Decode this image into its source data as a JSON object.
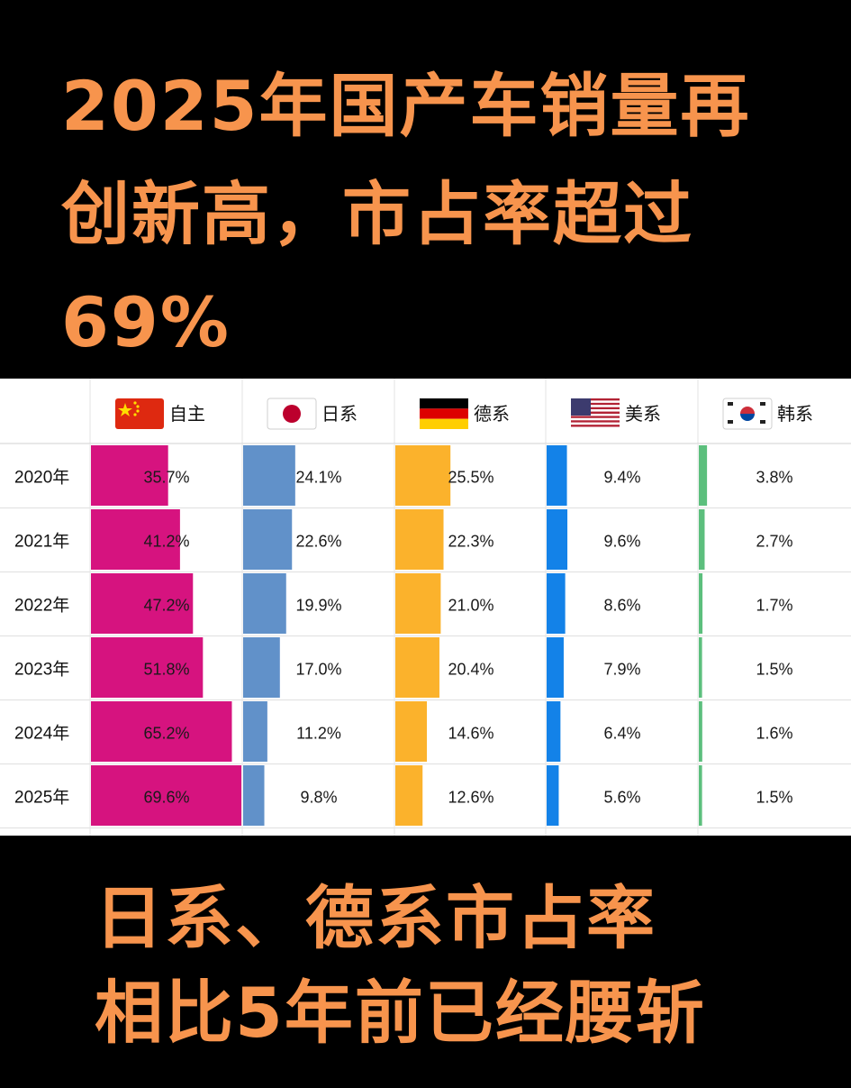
{
  "headline": "2025年国产车销量再\n创新高，市占率超过\n69%",
  "footer": "日系、德系市占率\n相比5年前已经腰斩",
  "chart_data": {
    "type": "bar",
    "layout": "table-of-horizontal-bars",
    "title": "",
    "categories": [
      "2020年",
      "2021年",
      "2022年",
      "2023年",
      "2024年",
      "2025年"
    ],
    "series": [
      {
        "name": "自主",
        "flag": "china-flag-icon",
        "color": "#d6137f",
        "values": [
          35.7,
          41.2,
          47.2,
          51.8,
          65.2,
          69.6
        ]
      },
      {
        "name": "日系",
        "flag": "japan-flag-icon",
        "color": "#6191c9",
        "values": [
          24.1,
          22.6,
          19.9,
          17.0,
          11.2,
          9.8
        ]
      },
      {
        "name": "德系",
        "flag": "germany-flag-icon",
        "color": "#fbb22c",
        "values": [
          25.5,
          22.3,
          21.0,
          20.4,
          14.6,
          12.6
        ]
      },
      {
        "name": "美系",
        "flag": "usa-flag-icon",
        "color": "#1382e8",
        "values": [
          9.4,
          9.6,
          8.6,
          7.9,
          6.4,
          5.6
        ]
      },
      {
        "name": "韩系",
        "flag": "korea-flag-icon",
        "color": "#5cbf7d",
        "values": [
          3.8,
          2.7,
          1.7,
          1.5,
          1.6,
          1.5
        ]
      }
    ],
    "value_suffix": "%",
    "grid": true
  }
}
